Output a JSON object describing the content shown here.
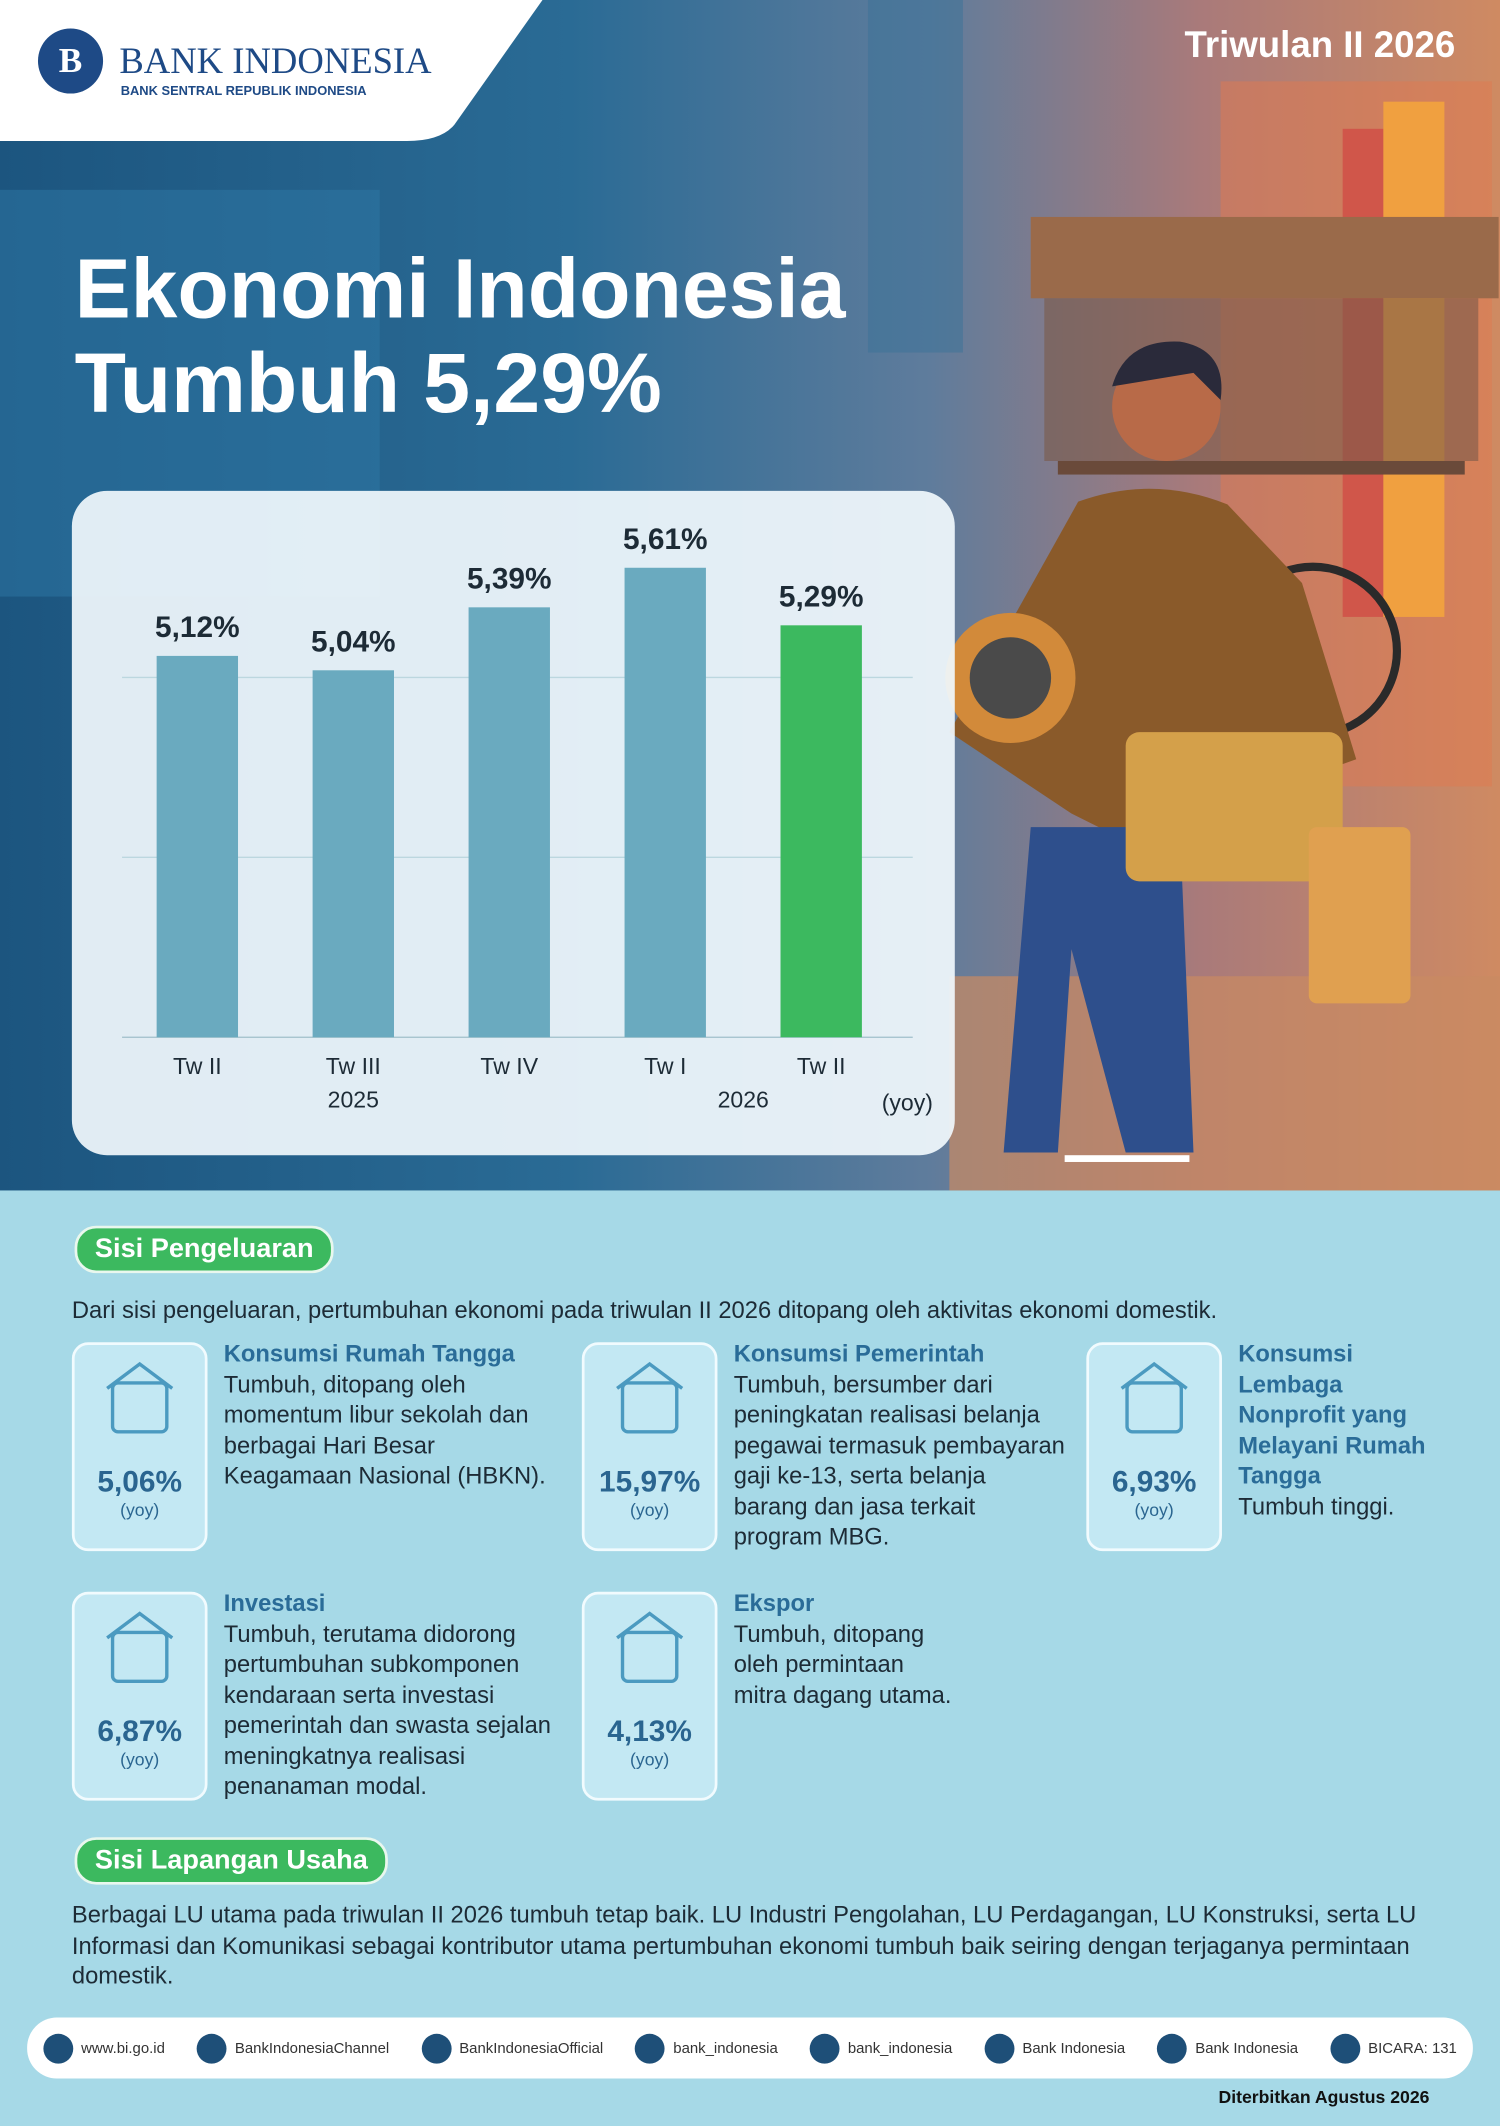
{
  "header": {
    "logo_title": "BANK INDONESIA",
    "logo_subtitle": "BANK SENTRAL REPUBLIK INDONESIA",
    "period": "Triwulan II 2026",
    "title_line1": "Ekonomi Indonesia",
    "title_line2": "Tumbuh 5,29%"
  },
  "chart_data": {
    "type": "bar",
    "categories": [
      "Tw II",
      "Tw III",
      "Tw IV",
      "Tw I",
      "Tw II"
    ],
    "category_groups": [
      "2025",
      "2025",
      "2025",
      "2026",
      "2026"
    ],
    "values": [
      5.12,
      5.04,
      5.39,
      5.61,
      5.29
    ],
    "value_labels": [
      "5,12%",
      "5,04%",
      "5,39%",
      "5,61%",
      "5,29%"
    ],
    "colors": [
      "#6aaabf",
      "#6aaabf",
      "#6aaabf",
      "#6aaabf",
      "#3cb95f"
    ],
    "unit_note": "(yoy)",
    "ylim": [
      3,
      6
    ],
    "yticks": [
      4,
      5
    ],
    "grid": true,
    "tick_labels": false
  },
  "expenditure": {
    "heading": "Sisi Pengeluaran",
    "intro": "Dari sisi pengeluaran, pertumbuhan ekonomi pada triwulan II 2026 ditopang oleh aktivitas ekonomi domestik.",
    "items": [
      {
        "title": "Konsumsi Rumah Tangga",
        "text": "Tumbuh, ditopang oleh momentum libur sekolah dan berbagai Hari Besar Keagamaan Nasional (HBKN).",
        "value": "5,06%",
        "unit": "(yoy)"
      },
      {
        "title": "Konsumsi Pemerintah",
        "text": "Tumbuh, bersumber dari peningkatan realisasi belanja pegawai termasuk pembayaran gaji ke-13, serta belanja barang dan jasa terkait program MBG.",
        "value": "15,97%",
        "unit": "(yoy)"
      },
      {
        "title": "Konsumsi Lembaga Nonprofit yang Melayani Rumah Tangga",
        "text": "Tumbuh tinggi.",
        "value": "6,93%",
        "unit": "(yoy)"
      },
      {
        "title": "Investasi",
        "text": "Tumbuh, terutama didorong pertumbuhan subkomponen kendaraan serta investasi pemerintah dan swasta sejalan meningkatnya realisasi penanaman modal.",
        "value": "6,87%",
        "unit": "(yoy)"
      },
      {
        "title": "Ekspor",
        "text": "Tumbuh, ditopang oleh permintaan mitra dagang utama.",
        "value": "4,13%",
        "unit": "(yoy)"
      }
    ]
  },
  "business": {
    "heading": "Sisi Lapangan Usaha",
    "text": "Berbagai LU utama pada triwulan II 2026 tumbuh tetap baik. LU Industri Pengolahan, LU Perdagangan, LU Konstruksi, serta LU Informasi dan Komunikasi sebagai kontributor utama pertumbuhan ekonomi tumbuh baik seiring dengan terjaganya permintaan domestik."
  },
  "footer": {
    "links": [
      "www.bi.go.id",
      "BankIndonesiaChannel",
      "BankIndonesiaOfficial",
      "bank_indonesia",
      "bank_indonesia",
      "Bank Indonesia",
      "Bank Indonesia",
      "BICARA: 131"
    ],
    "published": "Diterbitkan Agustus 2026"
  }
}
